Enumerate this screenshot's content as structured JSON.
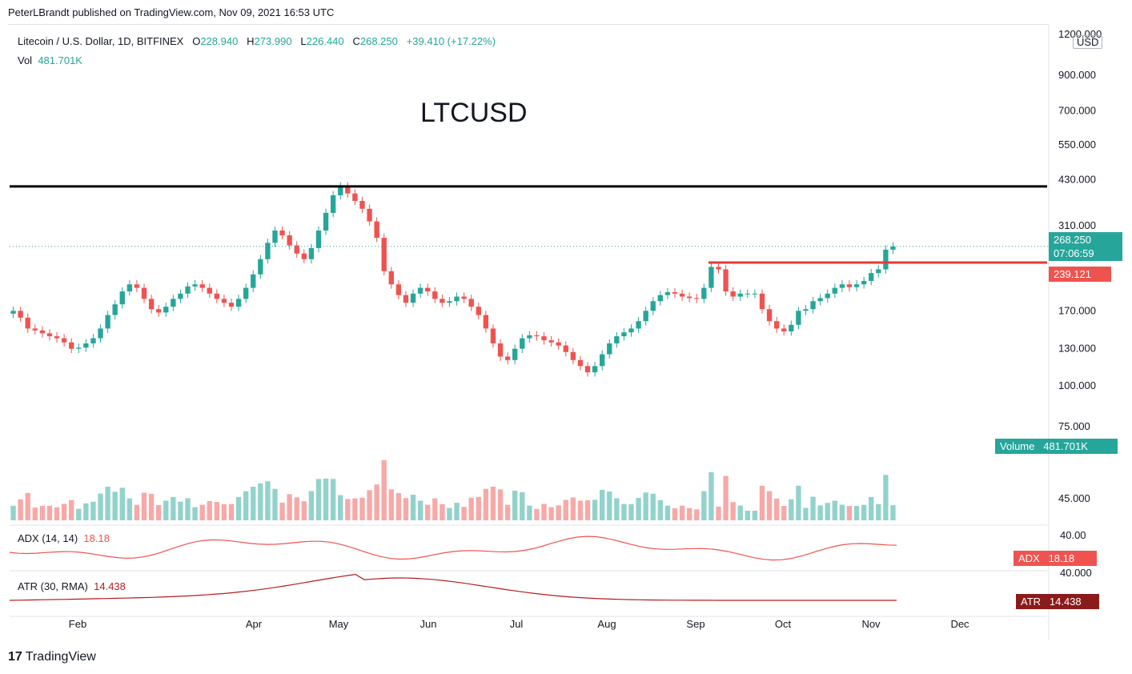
{
  "header": {
    "publisher": "PeterLBrandt published on TradingView.com, Nov 09, 2021 16:53 UTC"
  },
  "legend": {
    "symbol": "Litecoin / U.S. Dollar, 1D, BITFINEX",
    "o_label": "O",
    "o_value": "228.940",
    "h_label": "H",
    "h_value": "273.990",
    "l_label": "L",
    "l_value": "226.440",
    "c_label": "C",
    "c_value": "268.250",
    "change": "+39.410 (+17.22%)",
    "vol_label": "Vol",
    "vol_value": "481.701K"
  },
  "annotation": {
    "text": "LTCUSD"
  },
  "price_axis": {
    "currency": "USD",
    "ticks": [
      "1200.000",
      "900.000",
      "700.000",
      "550.000",
      "430.000",
      "310.000",
      "170.000",
      "130.000",
      "100.000",
      "75.000",
      "45.000"
    ],
    "last_price": "268.250",
    "countdown": "07:06:59",
    "line_price": "239.121"
  },
  "volume_tag": {
    "label": "Volume",
    "value": "481.701K"
  },
  "adx": {
    "legend": "ADX (14, 14)",
    "value": "18.18",
    "axis_tick": "40.00",
    "tag_label": "ADX"
  },
  "atr": {
    "legend": "ATR (30, RMA)",
    "value": "14.438",
    "axis_tick": "40.000",
    "tag_label": "ATR"
  },
  "time_axis": [
    "Feb",
    "Apr",
    "May",
    "Jun",
    "Jul",
    "Aug",
    "Sep",
    "Oct",
    "Nov",
    "Dec"
  ],
  "footer": {
    "brand": "TradingView",
    "logo": "17"
  },
  "colors": {
    "up": "#26a69a",
    "down": "#ef5350",
    "resistance": "#000000",
    "breakout": "#e53935",
    "atr": "#b71c1c"
  },
  "chart_data": {
    "type": "line",
    "scale": "log",
    "ylim": [
      72,
      1250
    ],
    "series": [
      {
        "values": [
          170,
          162,
          150,
          148,
          145,
          142,
          140,
          136,
          130,
          131,
          135,
          140,
          150,
          165,
          178,
          195,
          205,
          200,
          185,
          172,
          168,
          175,
          185,
          192,
          202,
          205,
          200,
          192,
          185,
          180,
          175,
          185,
          200,
          220,
          245,
          275,
          300,
          290,
          270,
          255,
          245,
          265,
          300,
          340,
          385,
          410,
          390,
          370,
          350,
          320,
          285,
          225,
          205,
          190,
          180,
          192,
          200,
          195,
          185,
          180,
          182,
          188,
          185,
          175,
          165,
          150,
          135,
          123,
          120,
          130,
          140,
          143,
          142,
          138,
          136,
          133,
          127,
          120,
          115,
          110,
          115,
          125,
          135,
          142,
          146,
          150,
          158,
          170,
          182,
          190,
          194,
          192,
          188,
          186,
          185,
          200,
          232,
          228,
          195,
          188,
          192,
          192,
          192,
          172,
          158,
          150,
          147,
          154,
          170,
          172,
          182,
          186,
          192,
          200,
          205,
          201,
          205,
          210,
          222,
          228,
          262,
          268
        ]
      }
    ],
    "resistance_level": 410,
    "breakout_level": 239.121,
    "last_price": 268.25
  }
}
